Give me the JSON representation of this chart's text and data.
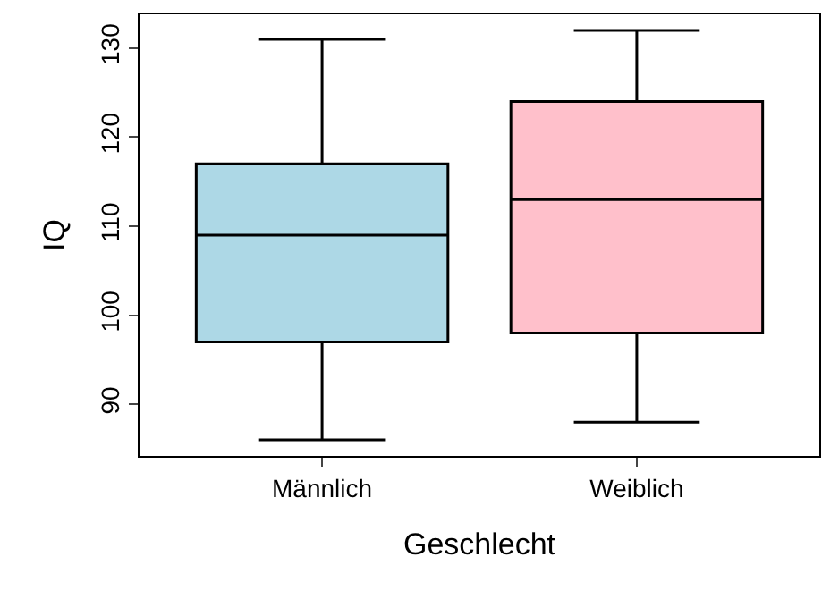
{
  "chart_data": {
    "type": "box",
    "xlabel": "Geschlecht",
    "ylabel": "IQ",
    "categories": [
      "Männlich",
      "Weiblich"
    ],
    "colors": [
      "#add8e6",
      "#ffc0cb"
    ],
    "boxes": [
      {
        "low": 86,
        "q1": 97,
        "median": 109,
        "q3": 117,
        "high": 131
      },
      {
        "low": 88,
        "q1": 98,
        "median": 113,
        "q3": 124,
        "high": 132
      }
    ],
    "ylim": [
      84.2,
      133.8
    ],
    "yticks": [
      90,
      100,
      110,
      120,
      130
    ]
  }
}
